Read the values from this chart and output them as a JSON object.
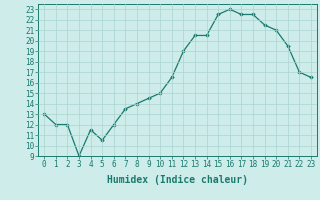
{
  "x": [
    0,
    1,
    2,
    3,
    4,
    5,
    6,
    7,
    8,
    9,
    10,
    11,
    12,
    13,
    14,
    15,
    16,
    17,
    18,
    19,
    20,
    21,
    22,
    23
  ],
  "y": [
    13,
    12,
    12,
    9,
    11.5,
    10.5,
    12,
    13.5,
    14,
    14.5,
    15,
    16.5,
    19,
    20.5,
    20.5,
    22.5,
    23,
    22.5,
    22.5,
    21.5,
    21,
    19.5,
    17,
    16.5
  ],
  "line_color": "#1a7a6e",
  "marker": "D",
  "marker_size": 1.8,
  "bg_color": "#cdecea",
  "grid_color": "#aad4d0",
  "xlabel": "Humidex (Indice chaleur)",
  "xlim": [
    -0.5,
    23.5
  ],
  "ylim": [
    9,
    23.5
  ],
  "yticks": [
    9,
    10,
    11,
    12,
    13,
    14,
    15,
    16,
    17,
    18,
    19,
    20,
    21,
    22,
    23
  ],
  "xticks": [
    0,
    1,
    2,
    3,
    4,
    5,
    6,
    7,
    8,
    9,
    10,
    11,
    12,
    13,
    14,
    15,
    16,
    17,
    18,
    19,
    20,
    21,
    22,
    23
  ],
  "tick_label_size": 5.5,
  "xlabel_size": 7.0,
  "linewidth": 0.9,
  "spine_color": "#1a7a6e"
}
